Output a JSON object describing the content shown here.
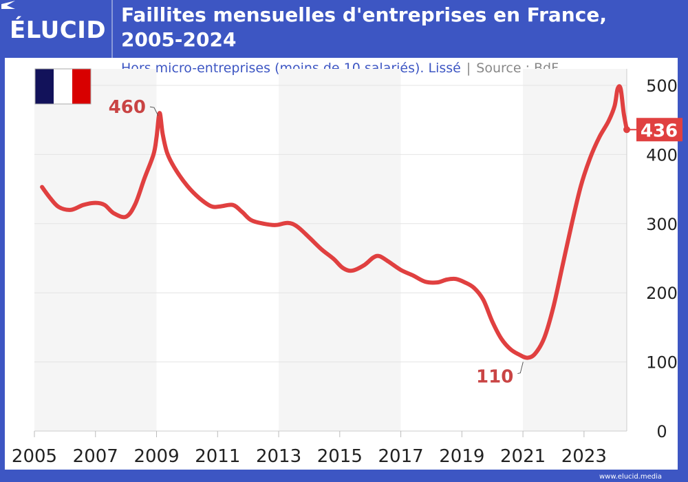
{
  "header": {
    "logo": "ÉLUCID",
    "title_line1": "Faillites mensuelles d'entreprises en France,",
    "title_line2": "2005-2024"
  },
  "subtitle": {
    "main": "Hors micro-entreprises (moins de 10 salariés). Lissé",
    "separator": "|",
    "source": "Source : BdF"
  },
  "flag": {
    "colors": [
      "#12125a",
      "#ffffff",
      "#d80000"
    ]
  },
  "footer": {
    "url": "www.elucid.media"
  },
  "colors": {
    "brand": "#3d56c3",
    "line": "#e04040",
    "label": "#c94444",
    "band": "#f5f5f5",
    "grid": "#e4e4e4"
  },
  "chart_data": {
    "type": "line",
    "title": "Faillites mensuelles d'entreprises en France, 2005-2024",
    "subtitle": "Hors micro-entreprises (moins de 10 salariés). Lissé",
    "source": "BdF",
    "xlabel": "",
    "ylabel": "",
    "xlim": [
      2005,
      2024.4
    ],
    "ylim": [
      0,
      500
    ],
    "x_ticks": [
      "2005",
      "2007",
      "2009",
      "2011",
      "2013",
      "2015",
      "2017",
      "2019",
      "2021",
      "2023"
    ],
    "y_ticks": [
      "0",
      "100",
      "200",
      "300",
      "400",
      "500"
    ],
    "y_axis_side": "right",
    "grid": true,
    "shaded_bands": [
      [
        2005,
        2009
      ],
      [
        2013,
        2017
      ],
      [
        2021,
        2024.4
      ]
    ],
    "series": [
      {
        "name": "Faillites mensuelles",
        "x": [
          2005.25,
          2005.5,
          2005.8,
          2006.2,
          2006.6,
          2007.0,
          2007.3,
          2007.6,
          2008.0,
          2008.3,
          2008.6,
          2008.9,
          2009.0,
          2009.1,
          2009.2,
          2009.35,
          2009.6,
          2010.0,
          2010.4,
          2010.8,
          2011.1,
          2011.5,
          2011.8,
          2012.1,
          2012.5,
          2012.9,
          2013.3,
          2013.6,
          2014.0,
          2014.4,
          2014.8,
          2015.1,
          2015.4,
          2015.8,
          2016.1,
          2016.3,
          2016.6,
          2017.0,
          2017.4,
          2017.8,
          2018.2,
          2018.5,
          2018.8,
          2019.1,
          2019.4,
          2019.7,
          2020.0,
          2020.3,
          2020.6,
          2020.9,
          2021.15,
          2021.4,
          2021.7,
          2022.0,
          2022.3,
          2022.6,
          2022.9,
          2023.2,
          2023.5,
          2023.8,
          2024.0,
          2024.1,
          2024.2,
          2024.3,
          2024.4
        ],
        "values": [
          353,
          338,
          324,
          320,
          327,
          330,
          327,
          315,
          310,
          328,
          365,
          400,
          425,
          460,
          430,
          402,
          380,
          355,
          337,
          325,
          325,
          327,
          317,
          305,
          300,
          298,
          301,
          296,
          280,
          263,
          249,
          236,
          232,
          240,
          251,
          253,
          245,
          233,
          225,
          216,
          215,
          219,
          220,
          215,
          207,
          190,
          158,
          133,
          118,
          110,
          106,
          112,
          135,
          180,
          240,
          300,
          355,
          395,
          425,
          448,
          470,
          495,
          495,
          460,
          436
        ]
      }
    ],
    "annotations": [
      {
        "text": "460",
        "x": 2009.1,
        "y": 460,
        "position": "left"
      },
      {
        "text": "110",
        "x": 2021.05,
        "y": 106,
        "position": "below-left"
      },
      {
        "text": "436",
        "x": 2024.4,
        "y": 436,
        "style": "highlight-box",
        "position": "right"
      }
    ]
  }
}
